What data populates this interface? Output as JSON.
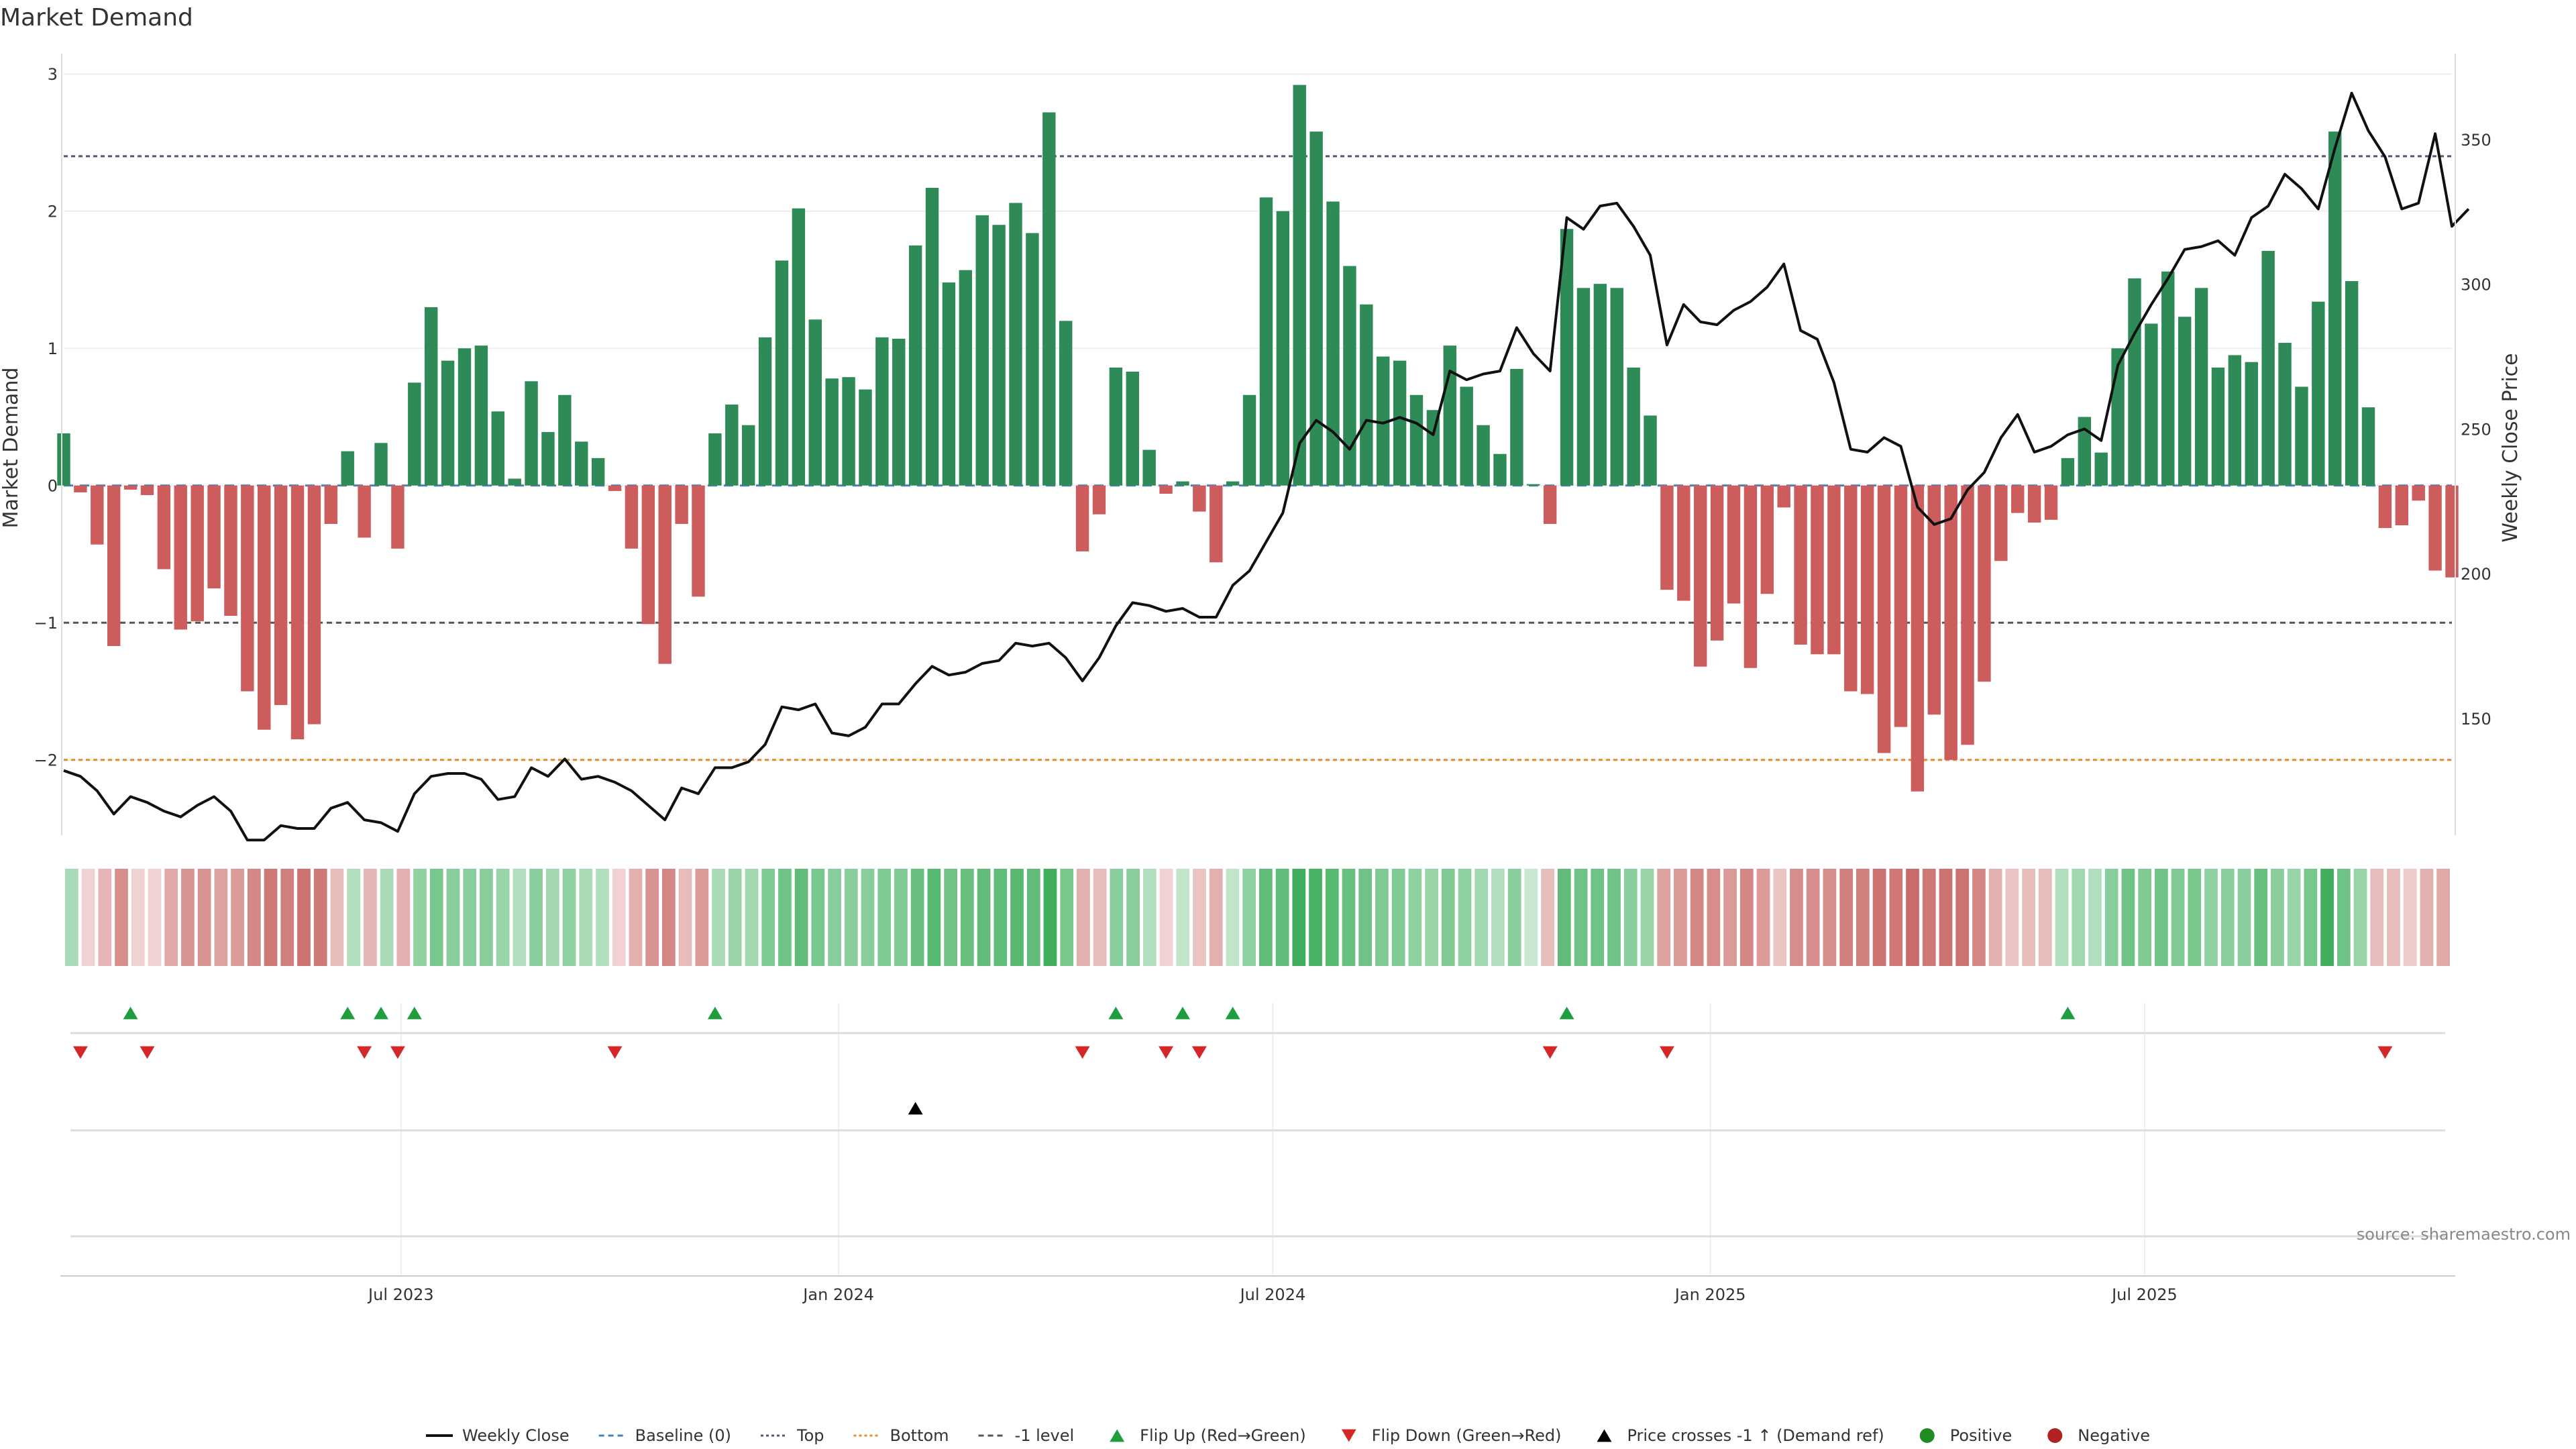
{
  "title": "Market Demand",
  "source_note": "source: sharemaestro.com",
  "chart_data": {
    "type": "bar",
    "title": "Market Demand",
    "ylabel": "Market Demand",
    "y2label": "Weekly Close Price",
    "ylim": [
      -2.5,
      3.05
    ],
    "y2lim": [
      112,
      375
    ],
    "y_ticks": [
      3,
      2,
      1,
      0,
      -1,
      -2
    ],
    "y_tick_labels": [
      "3",
      "2",
      "1",
      "0",
      "−1",
      "−2"
    ],
    "y2_ticks": [
      350,
      300,
      250,
      200,
      150
    ],
    "y2_tick_labels": [
      "350",
      "300",
      "250",
      "200",
      "150"
    ],
    "date_ticks": [
      {
        "week": 20.2,
        "label": "Jul 2023"
      },
      {
        "week": 46.4,
        "label": "Jan 2024"
      },
      {
        "week": 72.4,
        "label": "Jul 2024"
      },
      {
        "week": 98.6,
        "label": "Jan 2025"
      },
      {
        "week": 124.6,
        "label": "Jul 2025"
      }
    ],
    "reference_lines": {
      "top": 2.4,
      "minus_one": -1,
      "bottom": -2.0
    },
    "demand": [
      0.38,
      -0.05,
      -0.43,
      -1.17,
      -0.03,
      -0.07,
      -0.61,
      -1.05,
      -0.99,
      -0.75,
      -0.95,
      -1.5,
      -1.78,
      -1.6,
      -1.85,
      -1.74,
      -0.28,
      0.25,
      -0.38,
      0.31,
      -0.46,
      0.75,
      1.3,
      0.91,
      1.0,
      1.02,
      0.54,
      0.05,
      0.76,
      0.39,
      0.66,
      0.32,
      0.2,
      -0.04,
      -0.46,
      -1.01,
      -1.3,
      -0.28,
      -0.81,
      0.38,
      0.59,
      0.44,
      1.08,
      1.64,
      2.02,
      1.21,
      0.78,
      0.79,
      0.7,
      1.08,
      1.07,
      1.75,
      2.17,
      1.48,
      1.57,
      1.97,
      1.9,
      2.06,
      1.84,
      2.72,
      1.2,
      -0.48,
      -0.21,
      0.86,
      0.83,
      0.26,
      -0.06,
      0.03,
      -0.19,
      -0.56,
      0.03,
      0.66,
      2.1,
      2.0,
      2.92,
      2.58,
      2.07,
      1.6,
      1.32,
      0.94,
      0.91,
      0.66,
      0.55,
      1.02,
      0.72,
      0.44,
      0.23,
      0.85,
      0.01,
      -0.28,
      1.87,
      1.44,
      1.47,
      1.44,
      0.86,
      0.51,
      -0.76,
      -0.84,
      -1.32,
      -1.13,
      -0.86,
      -1.33,
      -0.79,
      -0.16,
      -1.16,
      -1.23,
      -1.23,
      -1.5,
      -1.52,
      -1.95,
      -1.76,
      -2.23,
      -1.67,
      -2.0,
      -1.89,
      -1.43,
      -0.55,
      -0.2,
      -0.27,
      -0.25,
      0.2,
      0.5,
      0.24,
      1.0,
      1.51,
      1.18,
      1.56,
      1.23,
      1.44,
      0.86,
      0.95,
      0.9,
      1.71,
      1.04,
      0.72,
      1.34,
      2.58,
      1.49,
      0.57,
      -0.31,
      -0.29,
      -0.11,
      -0.62,
      -0.67
    ],
    "weekly_close": [
      132,
      130,
      125,
      117,
      123,
      121,
      118,
      116,
      120,
      123,
      118,
      108,
      108,
      113,
      112,
      112,
      119,
      121,
      115,
      114,
      111,
      124,
      130,
      131,
      131,
      129,
      122,
      123,
      133,
      130,
      136,
      129,
      130,
      128,
      125,
      120,
      115,
      126,
      124,
      133,
      133,
      135,
      141,
      154,
      153,
      155,
      145,
      144,
      147,
      155,
      155,
      162,
      168,
      165,
      166,
      169,
      170,
      176,
      175,
      176,
      171,
      163,
      171,
      182,
      190,
      189,
      187,
      188,
      185,
      185,
      196,
      201,
      211,
      221,
      245,
      253,
      249,
      243,
      253,
      252,
      254,
      252,
      248,
      270,
      267,
      269,
      270,
      285,
      276,
      270,
      323,
      319,
      327,
      328,
      320,
      310,
      279,
      293,
      287,
      286,
      291,
      294,
      299,
      307,
      284,
      281,
      266,
      243,
      242,
      247,
      244,
      223,
      217,
      219,
      229,
      235,
      247,
      255,
      242,
      244,
      248,
      250,
      246,
      272,
      283,
      293,
      302,
      312,
      313,
      315,
      310,
      323,
      327,
      338,
      333,
      326,
      347,
      366,
      353,
      344,
      326,
      328,
      352,
      320,
      326
    ],
    "heat_intensity": [
      0.25,
      0.05,
      0.25,
      0.55,
      0.05,
      0.05,
      0.35,
      0.5,
      0.5,
      0.4,
      0.45,
      0.6,
      0.7,
      0.65,
      0.75,
      0.7,
      0.2,
      0.2,
      0.25,
      0.25,
      0.3,
      0.4,
      0.55,
      0.45,
      0.45,
      0.45,
      0.35,
      0.2,
      0.45,
      0.3,
      0.4,
      0.25,
      0.2,
      0.05,
      0.3,
      0.5,
      0.6,
      0.2,
      0.45,
      0.25,
      0.35,
      0.3,
      0.5,
      0.6,
      0.7,
      0.55,
      0.45,
      0.45,
      0.45,
      0.5,
      0.5,
      0.65,
      0.75,
      0.6,
      0.65,
      0.7,
      0.7,
      0.75,
      0.7,
      0.9,
      0.55,
      0.3,
      0.2,
      0.45,
      0.45,
      0.2,
      0.05,
      0.1,
      0.15,
      0.3,
      0.1,
      0.4,
      0.7,
      0.7,
      0.9,
      0.85,
      0.75,
      0.65,
      0.6,
      0.5,
      0.5,
      0.4,
      0.35,
      0.5,
      0.4,
      0.3,
      0.2,
      0.45,
      0.05,
      0.2,
      0.7,
      0.6,
      0.6,
      0.6,
      0.45,
      0.35,
      0.4,
      0.45,
      0.6,
      0.55,
      0.45,
      0.6,
      0.45,
      0.15,
      0.55,
      0.55,
      0.55,
      0.65,
      0.65,
      0.75,
      0.7,
      0.8,
      0.7,
      0.75,
      0.75,
      0.6,
      0.3,
      0.15,
      0.2,
      0.2,
      0.2,
      0.3,
      0.2,
      0.45,
      0.6,
      0.5,
      0.6,
      0.5,
      0.55,
      0.4,
      0.45,
      0.45,
      0.65,
      0.45,
      0.35,
      0.55,
      0.9,
      0.6,
      0.35,
      0.2,
      0.2,
      0.1,
      0.3,
      0.35
    ],
    "flip_up_weeks": [
      4,
      17,
      19,
      21,
      39,
      63,
      67,
      70,
      90,
      120
    ],
    "flip_down_weeks": [
      1,
      5,
      18,
      20,
      33,
      61,
      66,
      68,
      89,
      96,
      139
    ],
    "price_cross_weeks": [
      51
    ],
    "legend": [
      {
        "label": "Weekly Close",
        "kind": "line",
        "color": "#111111"
      },
      {
        "label": "Baseline (0)",
        "kind": "dash",
        "color": "#4a7fb5"
      },
      {
        "label": "Top",
        "kind": "dot",
        "color": "#555577"
      },
      {
        "label": "Bottom",
        "kind": "dot",
        "color": "#e8892a"
      },
      {
        "label": "-1 level",
        "kind": "dash",
        "color": "#555555"
      },
      {
        "label": "Flip Up (Red→Green)",
        "kind": "tri-up",
        "color": "#1e9e3e"
      },
      {
        "label": "Flip Down (Green→Red)",
        "kind": "tri-down",
        "color": "#d62728"
      },
      {
        "label": "Price crosses -1 ↑ (Demand ref)",
        "kind": "tri-up",
        "color": "#000000"
      },
      {
        "label": "Positive",
        "kind": "dot-marker",
        "color": "#228b22"
      },
      {
        "label": "Negative",
        "kind": "dot-marker",
        "color": "#b22222"
      }
    ]
  },
  "colors": {
    "positive": "#2e8b57",
    "negative": "#cd5c5c",
    "price": "#111111",
    "grid": "#eeeeee",
    "heat_pos": "#2fa84f",
    "heat_neg": "#c0504d",
    "top_line": "#555577",
    "bottom_line": "#e8892a",
    "minus_one_line": "#555555"
  }
}
